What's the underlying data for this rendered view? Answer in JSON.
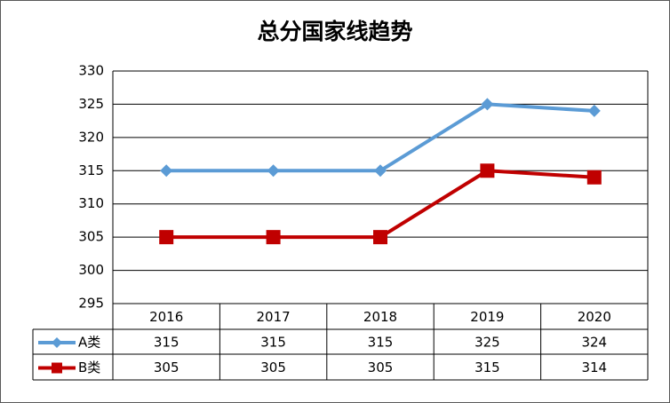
{
  "chart_data": {
    "type": "line",
    "title": "总分国家线趋势",
    "categories": [
      "2016",
      "2017",
      "2018",
      "2019",
      "2020"
    ],
    "series": [
      {
        "name": "A类",
        "color": "#5b9bd5",
        "marker": "diamond",
        "values": [
          315,
          315,
          315,
          325,
          324
        ]
      },
      {
        "name": "B类",
        "color": "#c00000",
        "marker": "square",
        "values": [
          305,
          305,
          305,
          315,
          314
        ]
      }
    ],
    "ylim": [
      295,
      330
    ],
    "yticks": [
      295,
      300,
      305,
      310,
      315,
      320,
      325,
      330
    ],
    "grid": true,
    "data_table": true
  }
}
